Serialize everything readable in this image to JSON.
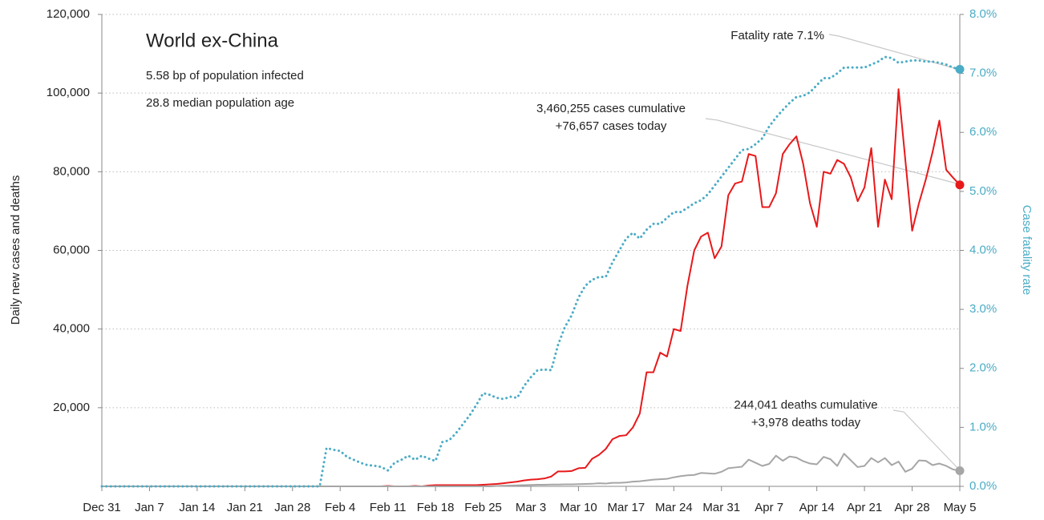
{
  "chart_data": {
    "type": "line",
    "title": "World ex-China",
    "annotations": [
      "5.58 bp of population infected",
      "28.8 median population age",
      "Fatality rate 7.1%",
      "3,460,255 cases cumulative",
      "+76,657 cases today",
      "244,041 deaths cumulative",
      "+3,978 deaths today"
    ],
    "y_label": "Daily new cases and deaths",
    "y2_label": "Case fatality rate",
    "categories": [
      "Dec 31",
      null,
      null,
      null,
      null,
      null,
      null,
      "Jan 7",
      null,
      null,
      null,
      null,
      null,
      null,
      "Jan 14",
      null,
      null,
      null,
      null,
      null,
      null,
      "Jan 21",
      null,
      null,
      null,
      null,
      null,
      null,
      "Jan 28",
      null,
      null,
      null,
      null,
      null,
      null,
      "Feb 4",
      null,
      null,
      null,
      null,
      null,
      null,
      "Feb 11",
      null,
      null,
      null,
      null,
      null,
      null,
      "Feb 18",
      null,
      null,
      null,
      null,
      null,
      null,
      "Feb 25",
      null,
      null,
      null,
      null,
      null,
      null,
      "Mar 3",
      null,
      null,
      null,
      null,
      null,
      null,
      "Mar 10",
      null,
      null,
      null,
      null,
      null,
      null,
      "Mar 17",
      null,
      null,
      null,
      null,
      null,
      null,
      "Mar 24",
      null,
      null,
      null,
      null,
      null,
      null,
      "Mar 31",
      null,
      null,
      null,
      null,
      null,
      null,
      "Apr 7",
      null,
      null,
      null,
      null,
      null,
      null,
      "Apr 14",
      null,
      null,
      null,
      null,
      null,
      null,
      "Apr 21",
      null,
      null,
      null,
      null,
      null,
      null,
      "Apr 28",
      null,
      null,
      null,
      null,
      null,
      null,
      "May 5"
    ],
    "series": [
      {
        "color": "#e8191b",
        "style": "solid",
        "axis": "y",
        "values": [
          0,
          0,
          0,
          0,
          0,
          0,
          0,
          0,
          0,
          0,
          0,
          0,
          0,
          0,
          0,
          0,
          0,
          0,
          0,
          0,
          0,
          0,
          0,
          0,
          0,
          0,
          0,
          0,
          0,
          0,
          0,
          0,
          0,
          0,
          0,
          0,
          0,
          0,
          0,
          0,
          0,
          0,
          100,
          0,
          0,
          0,
          100,
          0,
          200,
          300,
          300,
          300,
          300,
          300,
          300,
          300,
          400,
          500,
          600,
          800,
          1000,
          1200,
          1500,
          1700,
          1800,
          2000,
          2500,
          3800,
          3800,
          3900,
          4600,
          4700,
          7000,
          8000,
          9500,
          12000,
          12800,
          13000,
          15000,
          18500,
          29000,
          29000,
          34000,
          33000,
          40000,
          39500,
          51000,
          60000,
          63500,
          64500,
          58000,
          61000,
          74000,
          77000,
          77500,
          84500,
          84000,
          71000,
          71000,
          74500,
          84500,
          87000,
          89000,
          82000,
          72000,
          66000,
          80000,
          79500,
          83000,
          82000,
          78500,
          72500,
          76000,
          86000,
          66000,
          78000,
          73000,
          101000,
          83000,
          65000,
          72000,
          78000,
          85000,
          93000,
          80500,
          78500,
          76657
        ]
      },
      {
        "color": "#a6a6a6",
        "style": "solid",
        "axis": "y",
        "values": [
          0,
          0,
          0,
          0,
          0,
          0,
          0,
          0,
          0,
          0,
          0,
          0,
          0,
          0,
          0,
          0,
          0,
          0,
          0,
          0,
          0,
          0,
          0,
          0,
          0,
          0,
          0,
          0,
          0,
          0,
          0,
          0,
          0,
          0,
          0,
          0,
          0,
          0,
          0,
          0,
          0,
          0,
          0,
          0,
          0,
          0,
          0,
          0,
          0,
          0,
          0,
          0,
          0,
          0,
          0,
          0,
          0,
          0,
          100,
          150,
          200,
          250,
          300,
          350,
          400,
          400,
          450,
          450,
          500,
          500,
          550,
          600,
          650,
          800,
          700,
          900,
          900,
          1000,
          1200,
          1300,
          1500,
          1700,
          1800,
          1900,
          2300,
          2600,
          2800,
          2900,
          3400,
          3300,
          3200,
          3700,
          4600,
          4800,
          5000,
          6800,
          6000,
          5200,
          5700,
          7800,
          6500,
          7600,
          7300,
          6400,
          5800,
          5600,
          7500,
          6900,
          5200,
          8300,
          6600,
          4900,
          5200,
          7200,
          6100,
          7200,
          5400,
          6300,
          3700,
          4500,
          6600,
          6500,
          5400,
          5800,
          5200,
          4300,
          3978
        ]
      },
      {
        "color": "#4bacc6",
        "style": "dotted",
        "axis": "y2",
        "values": [
          0,
          0,
          0,
          0,
          0,
          0,
          0,
          0,
          0,
          0,
          0,
          0,
          0,
          0,
          0,
          0,
          0,
          0,
          0,
          0,
          0,
          0,
          0,
          0,
          0,
          0,
          0,
          0,
          0,
          0,
          0,
          0,
          0,
          0.65,
          0.62,
          0.6,
          0.5,
          0.45,
          0.4,
          0.36,
          0.35,
          0.33,
          0.27,
          0.4,
          0.45,
          0.52,
          0.45,
          0.52,
          0.47,
          0.43,
          0.75,
          0.78,
          0.9,
          1.05,
          1.2,
          1.38,
          1.58,
          1.55,
          1.5,
          1.48,
          1.52,
          1.5,
          1.7,
          1.85,
          1.97,
          1.98,
          1.97,
          2.4,
          2.7,
          2.9,
          3.2,
          3.4,
          3.5,
          3.55,
          3.55,
          3.8,
          4.0,
          4.2,
          4.3,
          4.2,
          4.35,
          4.45,
          4.45,
          4.55,
          4.65,
          4.65,
          4.72,
          4.8,
          4.85,
          4.95,
          5.1,
          5.25,
          5.4,
          5.55,
          5.7,
          5.72,
          5.8,
          5.9,
          6.1,
          6.25,
          6.38,
          6.5,
          6.6,
          6.62,
          6.68,
          6.8,
          6.92,
          6.92,
          7.0,
          7.1,
          7.1,
          7.1,
          7.1,
          7.15,
          7.2,
          7.28,
          7.26,
          7.18,
          7.2,
          7.22,
          7.22,
          7.2,
          7.2,
          7.18,
          7.15,
          7.1,
          7.07
        ]
      }
    ],
    "ylim": [
      0,
      120000
    ],
    "yticks": [
      {
        "value": 20000,
        "label": "20,000"
      },
      {
        "value": 40000,
        "label": "40,000"
      },
      {
        "value": 60000,
        "label": "60,000"
      },
      {
        "value": 80000,
        "label": "80,000"
      },
      {
        "value": 100000,
        "label": "100,000"
      },
      {
        "value": 120000,
        "label": "120,000"
      }
    ],
    "y2lim": [
      0,
      8
    ],
    "y2ticks": [
      {
        "value": 0,
        "label": "0.0%"
      },
      {
        "value": 1,
        "label": "1.0%"
      },
      {
        "value": 2,
        "label": "2.0%"
      },
      {
        "value": 3,
        "label": "3.0%"
      },
      {
        "value": 4,
        "label": "4.0%"
      },
      {
        "value": 5,
        "label": "5.0%"
      },
      {
        "value": 6,
        "label": "6.0%"
      },
      {
        "value": 7,
        "label": "7.0%"
      },
      {
        "value": 8,
        "label": "8.0%"
      }
    ],
    "grid": true
  }
}
